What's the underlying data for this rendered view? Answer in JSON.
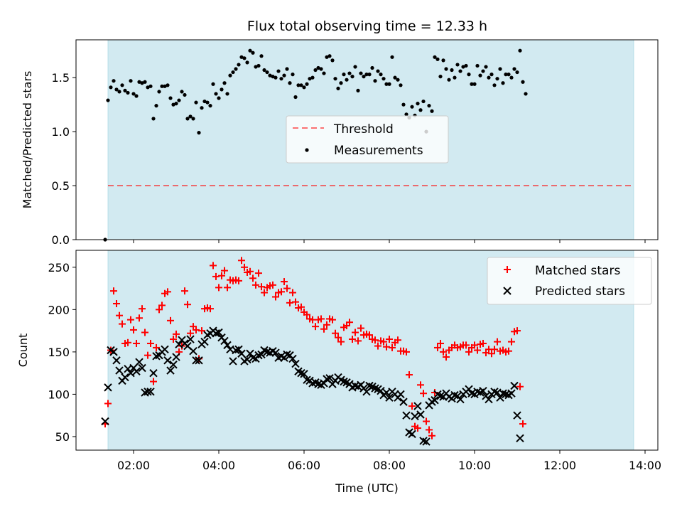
{
  "title": "Flux total observing time = 12.33 h",
  "colors": {
    "shade": "#add8e6",
    "threshold": "#ff0000",
    "measurements": "#000000",
    "matched": "#ff0000",
    "predicted": "#000000"
  },
  "chart_data": [
    {
      "type": "scatter",
      "ylabel": "Matched/Predicted stars",
      "xlim_hours": [
        0.65,
        14.3
      ],
      "ylim": [
        0,
        1.85
      ],
      "yticks": [
        0.0,
        0.5,
        1.0,
        1.5
      ],
      "ytick_labels": [
        "0.0",
        "0.5",
        "1.0",
        "1.5"
      ],
      "shaded_span": [
        "01:24",
        "13:44"
      ],
      "legend": {
        "position": "center",
        "entries": [
          "Threshold",
          "Measurements"
        ]
      },
      "threshold": {
        "name": "Threshold",
        "value": 0.5,
        "x_range": [
          "01:24",
          "13:44"
        ]
      },
      "measurements": {
        "name": "Measurements",
        "x_start": "01:20",
        "x_step_minutes": 4,
        "values": [
          0.0,
          1.29,
          1.41,
          1.47,
          1.39,
          1.37,
          1.43,
          1.38,
          1.36,
          1.47,
          1.35,
          1.33,
          1.46,
          1.45,
          1.46,
          1.41,
          1.42,
          1.12,
          1.24,
          1.37,
          1.42,
          1.42,
          1.43,
          1.31,
          1.25,
          1.26,
          1.29,
          1.37,
          1.34,
          1.12,
          1.14,
          1.12,
          1.27,
          0.99,
          1.22,
          1.28,
          1.27,
          1.24,
          1.44,
          1.35,
          1.31,
          1.39,
          1.45,
          1.35,
          1.52,
          1.55,
          1.58,
          1.62,
          1.69,
          1.68,
          1.64,
          1.75,
          1.73,
          1.6,
          1.61,
          1.7,
          1.57,
          1.55,
          1.52,
          1.51,
          1.5,
          1.56,
          1.49,
          1.52,
          1.58,
          1.45,
          1.53,
          1.32,
          1.43,
          1.43,
          1.41,
          1.44,
          1.49,
          1.5,
          1.57,
          1.59,
          1.58,
          1.54,
          1.69,
          1.7,
          1.66,
          1.49,
          1.4,
          1.45,
          1.53,
          1.48,
          1.54,
          1.51,
          1.6,
          1.38,
          1.54,
          1.51,
          1.53,
          1.53,
          1.59,
          1.47,
          1.56,
          1.53,
          1.49,
          1.44,
          1.44,
          1.69,
          1.5,
          1.48,
          1.43,
          1.25,
          1.16,
          1.13,
          1.23,
          1.15,
          1.26,
          1.2,
          1.28,
          1.0,
          1.24,
          1.19,
          1.69,
          1.67,
          1.51,
          1.66,
          1.58,
          1.48,
          1.57,
          1.5,
          1.62,
          1.56,
          1.6,
          1.61,
          1.53,
          1.44,
          1.44,
          1.61,
          1.52,
          1.56,
          1.6,
          1.5,
          1.53,
          1.43,
          1.49,
          1.58,
          1.45,
          1.53,
          1.53,
          1.5,
          1.58,
          1.55,
          1.75,
          1.46,
          1.35
        ]
      }
    },
    {
      "type": "scatter",
      "xlabel": "Time (UTC)",
      "ylabel": "Count",
      "xlim_hours": [
        0.65,
        14.3
      ],
      "ylim": [
        34,
        270
      ],
      "yticks": [
        50,
        100,
        150,
        200,
        250
      ],
      "ytick_labels": [
        "50",
        "100",
        "150",
        "200",
        "250"
      ],
      "xtick_labels": [
        "02:00",
        "04:00",
        "06:00",
        "08:00",
        "10:00",
        "12:00",
        "14:00"
      ],
      "shaded_span": [
        "01:24",
        "13:44"
      ],
      "legend": {
        "position": "top-right",
        "entries": [
          "Matched stars",
          "Predicted stars"
        ]
      },
      "x_start": "01:20",
      "x_step_minutes": 4,
      "series": [
        {
          "name": "Matched stars",
          "marker": "plus",
          "values": [
            65,
            89,
            152,
            222,
            207,
            193,
            183,
            160,
            161,
            188,
            176,
            160,
            190,
            201,
            173,
            146,
            160,
            115,
            155,
            200,
            205,
            219,
            221,
            187,
            165,
            171,
            150,
            157,
            222,
            206,
            172,
            180,
            176,
            142,
            175,
            201,
            202,
            201,
            252,
            239,
            226,
            240,
            246,
            226,
            235,
            234,
            235,
            234,
            258,
            250,
            244,
            245,
            237,
            229,
            243,
            227,
            220,
            226,
            228,
            229,
            215,
            220,
            221,
            233,
            225,
            208,
            220,
            209,
            202,
            203,
            197,
            194,
            189,
            188,
            180,
            188,
            189,
            177,
            182,
            189,
            188,
            172,
            167,
            162,
            179,
            181,
            185,
            165,
            173,
            163,
            178,
            170,
            171,
            170,
            165,
            164,
            157,
            163,
            162,
            156,
            165,
            155,
            161,
            164,
            151,
            151,
            150,
            123,
            86,
            62,
            60,
            111,
            101,
            68,
            58,
            51,
            102,
            155,
            160,
            150,
            144,
            152,
            155,
            158,
            155,
            156,
            158,
            158,
            150,
            155,
            158,
            152,
            159,
            160,
            149,
            153,
            148,
            153,
            162,
            151,
            152,
            150,
            151,
            162,
            174,
            175,
            109,
            65
          ]
        },
        {
          "name": "Predicted stars",
          "marker": "cross",
          "values": [
            68,
            108,
            152,
            150,
            140,
            128,
            116,
            120,
            130,
            125,
            131,
            127,
            138,
            131,
            102,
            103,
            103,
            125,
            145,
            146,
            150,
            153,
            140,
            128,
            135,
            144,
            159,
            164,
            160,
            157,
            165,
            151,
            140,
            140,
            159,
            162,
            170,
            172,
            175,
            172,
            173,
            167,
            163,
            158,
            153,
            139,
            152,
            153,
            148,
            139,
            141,
            148,
            143,
            142,
            146,
            147,
            152,
            150,
            149,
            151,
            149,
            143,
            145,
            143,
            147,
            146,
            142,
            136,
            127,
            125,
            124,
            117,
            116,
            113,
            114,
            112,
            111,
            113,
            118,
            119,
            112,
            116,
            120,
            117,
            115,
            114,
            112,
            108,
            110,
            109,
            111,
            107,
            103,
            110,
            109,
            107,
            106,
            104,
            99,
            102,
            96,
            103,
            100,
            96,
            100,
            91,
            75,
            55,
            53,
            74,
            86,
            76,
            45,
            44,
            87,
            91,
            93,
            100,
            98,
            97,
            101,
            97,
            95,
            99,
            98,
            94,
            100,
            103,
            106,
            101,
            100,
            103,
            102,
            104,
            98,
            94,
            100,
            103,
            102,
            96,
            101,
            100,
            99,
            101,
            110,
            75,
            48
          ]
        }
      ]
    }
  ]
}
